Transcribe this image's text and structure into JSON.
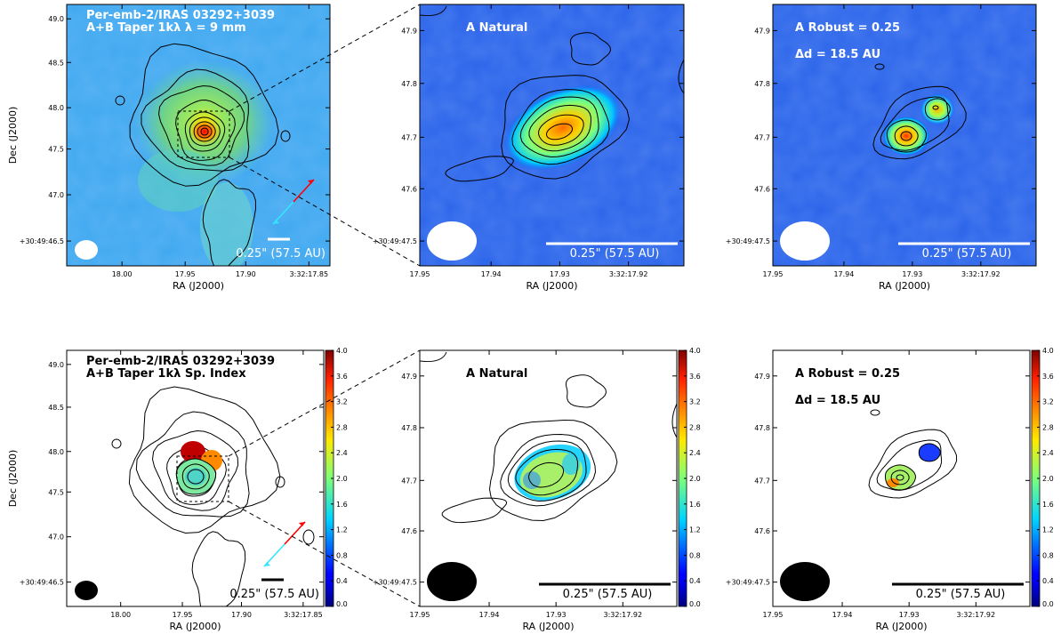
{
  "chart_data": [
    {
      "type": "heatmap",
      "title_lines": [
        "Per-emb-2/IRAS 03292+3039",
        "A+B Taper 1kλ  λ = 9 mm"
      ],
      "xlabel": "RA (J2000)",
      "ylabel": "Dec (J2000)",
      "x_ticks": [
        "18.00",
        "17.95",
        "17.90",
        "3:32:17.85"
      ],
      "y_ticks": [
        "+30:49:46.5",
        "47.0",
        "47.5",
        "48.0",
        "48.5",
        "49.0"
      ],
      "ylim": [
        46.3,
        49.2
      ],
      "scalebar": "0.25\" (57.5 AU)",
      "map": "intensity",
      "peak": {
        "ra_s": 17.933,
        "dec_s": 47.73
      },
      "outflow_arrows": [
        "red",
        "cyan"
      ]
    },
    {
      "type": "heatmap",
      "title_lines": [
        "A Natural"
      ],
      "xlabel": "RA (J2000)",
      "x_ticks": [
        "17.95",
        "17.94",
        "17.93",
        "3:32:17.92"
      ],
      "y_ticks": [
        "+30:49:47.5",
        "47.6",
        "47.7",
        "47.8",
        "47.9"
      ],
      "ylim": [
        47.45,
        47.95
      ],
      "scalebar": "0.25\" (57.5 AU)",
      "map": "intensity",
      "peak": {
        "ra_s": 17.93,
        "dec_s": 47.71
      }
    },
    {
      "type": "heatmap",
      "title_lines": [
        "A Robust = 0.25",
        "Δd = 18.5 AU"
      ],
      "xlabel": "RA (J2000)",
      "x_ticks": [
        "17.95",
        "17.94",
        "17.93",
        "3:32:17.92"
      ],
      "y_ticks": [
        "+30:49:47.5",
        "47.6",
        "47.7",
        "47.8",
        "47.9"
      ],
      "ylim": [
        47.45,
        47.95
      ],
      "scalebar": "0.25\" (57.5 AU)",
      "map": "intensity",
      "sources": [
        {
          "ra_s": 17.931,
          "dec_s": 47.705
        },
        {
          "ra_s": 17.927,
          "dec_s": 47.755
        }
      ]
    },
    {
      "type": "heatmap",
      "title_lines": [
        "Per-emb-2/IRAS 03292+3039",
        "A+B Taper 1kλ  Sp. Index"
      ],
      "xlabel": "RA (J2000)",
      "ylabel": "Dec (J2000)",
      "x_ticks": [
        "18.00",
        "17.95",
        "17.90",
        "3:32:17.85"
      ],
      "y_ticks": [
        "+30:49:46.5",
        "47.0",
        "47.5",
        "48.0",
        "48.5",
        "49.0"
      ],
      "ylim": [
        46.3,
        49.2
      ],
      "scalebar": "0.25\" (57.5 AU)",
      "map": "spectral index",
      "colorbar": {
        "ticks": [
          "0.0",
          "0.4",
          "0.8",
          "1.2",
          "1.6",
          "2.0",
          "2.4",
          "2.8",
          "3.2",
          "3.6",
          "4.0"
        ],
        "range": [
          0,
          4
        ]
      },
      "outflow_arrows": [
        "red",
        "cyan"
      ]
    },
    {
      "type": "heatmap",
      "title_lines": [
        "A Natural"
      ],
      "xlabel": "RA (J2000)",
      "x_ticks": [
        "17.95",
        "17.94",
        "17.93",
        "3:32:17.92"
      ],
      "y_ticks": [
        "+30:49:47.5",
        "47.6",
        "47.7",
        "47.8",
        "47.9"
      ],
      "ylim": [
        47.45,
        47.95
      ],
      "scalebar": "0.25\" (57.5 AU)",
      "map": "spectral index",
      "colorbar": {
        "ticks": [
          "0.0",
          "0.4",
          "0.8",
          "1.2",
          "1.6",
          "2.0",
          "2.4",
          "2.8",
          "3.2",
          "3.6",
          "4.0"
        ],
        "range": [
          0,
          4
        ]
      }
    },
    {
      "type": "heatmap",
      "title_lines": [
        "A Robust = 0.25",
        "Δd = 18.5 AU"
      ],
      "xlabel": "RA (J2000)",
      "x_ticks": [
        "17.95",
        "17.94",
        "17.93",
        "3:32:17.92"
      ],
      "y_ticks": [
        "+30:49:47.5",
        "47.6",
        "47.7",
        "47.8",
        "47.9"
      ],
      "ylim": [
        47.45,
        47.95
      ],
      "scalebar": "0.25\" (57.5 AU)",
      "map": "spectral index",
      "colorbar": {
        "ticks": [
          "0.0",
          "0.4",
          "0.8",
          "1.2",
          "1.6",
          "2.0",
          "2.4",
          "2.8",
          "3.2",
          "3.6",
          "4.0"
        ],
        "range": [
          0,
          4
        ]
      }
    }
  ]
}
